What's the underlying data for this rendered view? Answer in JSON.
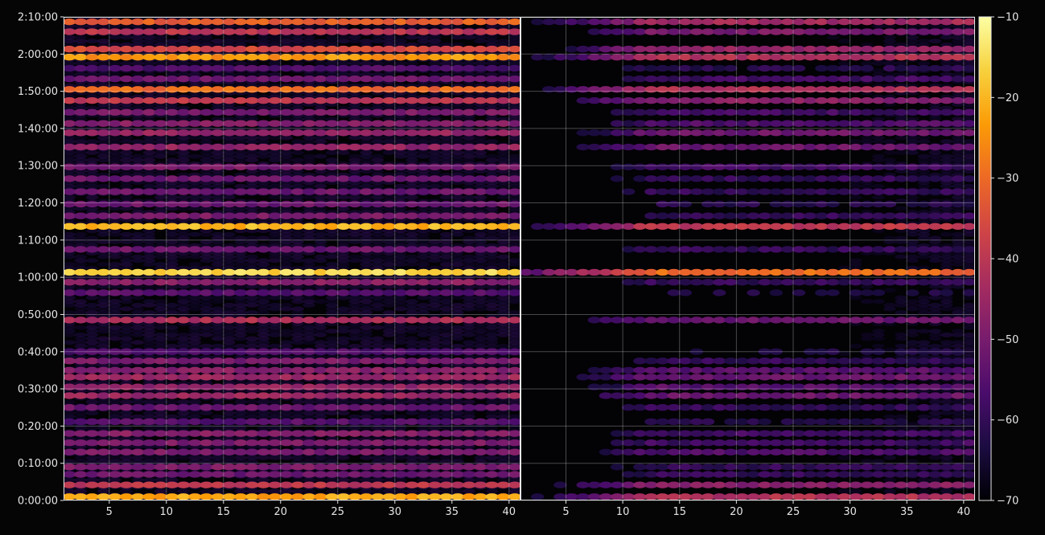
{
  "chart_data": {
    "type": "heatmap",
    "title": "",
    "xlabel": "",
    "ylabel": "",
    "grid": true,
    "panels": [
      {
        "name": "",
        "x_range": [
          1,
          40
        ],
        "x_ticks": [
          5,
          10,
          15,
          20,
          25,
          30,
          35,
          40
        ],
        "x_tick_labels": [
          "5",
          "10",
          "15",
          "20",
          "25",
          "30",
          "35",
          "40"
        ]
      },
      {
        "name": "",
        "x_range": [
          1,
          40
        ],
        "x_ticks": [
          5,
          10,
          15,
          20,
          25,
          30,
          35,
          40
        ],
        "x_tick_labels": [
          "5",
          "10",
          "15",
          "20",
          "25",
          "30",
          "35",
          "40"
        ]
      }
    ],
    "y_axis": {
      "unit": "seconds",
      "range": [
        0,
        7800
      ],
      "ticks": [
        0,
        600,
        1200,
        1800,
        2400,
        3000,
        3600,
        4200,
        4800,
        5400,
        6000,
        6600,
        7200,
        7800
      ],
      "tick_labels": [
        "0:00:00",
        "0:10:00",
        "0:20:00",
        "0:30:00",
        "0:40:00",
        "0:50:00",
        "1:00:00",
        "1:10:00",
        "1:20:00",
        "1:30:00",
        "1:40:00",
        "1:50:00",
        "2:00:00",
        "2:10:00"
      ]
    },
    "colorbar": {
      "colormap": "inferno",
      "range": [
        -70,
        -10
      ],
      "ticks": [
        -70,
        -60,
        -50,
        -40,
        -30,
        -20,
        -10
      ],
      "tick_labels": [
        "−70",
        "−60",
        "−50",
        "−40",
        "−30",
        "−20",
        "−10"
      ],
      "stops": [
        "#000004",
        "#1b0c41",
        "#4a0c6b",
        "#781c6d",
        "#a52c60",
        "#cf4446",
        "#ed6925",
        "#fb9b06",
        "#f7d13d",
        "#fcffa4"
      ]
    },
    "bands": [
      {
        "t": 60,
        "left": -22,
        "right": -42
      },
      {
        "t": 250,
        "left": -40,
        "right": -48
      },
      {
        "t": 420,
        "left": -52,
        "right": -60
      },
      {
        "t": 540,
        "left": -50,
        "right": -60
      },
      {
        "t": 780,
        "left": -50,
        "right": -56
      },
      {
        "t": 930,
        "left": -50,
        "right": -58
      },
      {
        "t": 1080,
        "left": -48,
        "right": -58
      },
      {
        "t": 1270,
        "left": -55,
        "right": -62
      },
      {
        "t": 1500,
        "left": -52,
        "right": -60
      },
      {
        "t": 1690,
        "left": -45,
        "right": -52
      },
      {
        "t": 1830,
        "left": -46,
        "right": -55
      },
      {
        "t": 1990,
        "left": -45,
        "right": -52
      },
      {
        "t": 2100,
        "left": -48,
        "right": -55
      },
      {
        "t": 2250,
        "left": -50,
        "right": -60
      },
      {
        "t": 2400,
        "left": -56,
        "right": -64
      },
      {
        "t": 2910,
        "left": -42,
        "right": -52
      },
      {
        "t": 3350,
        "left": -55,
        "right": -64
      },
      {
        "t": 3520,
        "left": -48,
        "right": -60
      },
      {
        "t": 3680,
        "left": -16,
        "right": -30
      },
      {
        "t": 4050,
        "left": -52,
        "right": -60
      },
      {
        "t": 4420,
        "left": -20,
        "right": -40
      },
      {
        "t": 4590,
        "left": -50,
        "right": -60
      },
      {
        "t": 4780,
        "left": -52,
        "right": -62
      },
      {
        "t": 4980,
        "left": -52,
        "right": -60
      },
      {
        "t": 5190,
        "left": -52,
        "right": -60
      },
      {
        "t": 5380,
        "left": -50,
        "right": -58
      },
      {
        "t": 5700,
        "left": -46,
        "right": -52
      },
      {
        "t": 5930,
        "left": -46,
        "right": -52
      },
      {
        "t": 6080,
        "left": -48,
        "right": -56
      },
      {
        "t": 6260,
        "left": -50,
        "right": -58
      },
      {
        "t": 6450,
        "left": -40,
        "right": -48
      },
      {
        "t": 6630,
        "left": -30,
        "right": -42
      },
      {
        "t": 6800,
        "left": -52,
        "right": -58
      },
      {
        "t": 6970,
        "left": -56,
        "right": -62
      },
      {
        "t": 7150,
        "left": -24,
        "right": -42
      },
      {
        "t": 7280,
        "left": -36,
        "right": -46
      },
      {
        "t": 7560,
        "left": -40,
        "right": -50
      },
      {
        "t": 7720,
        "left": -32,
        "right": -44
      }
    ]
  }
}
